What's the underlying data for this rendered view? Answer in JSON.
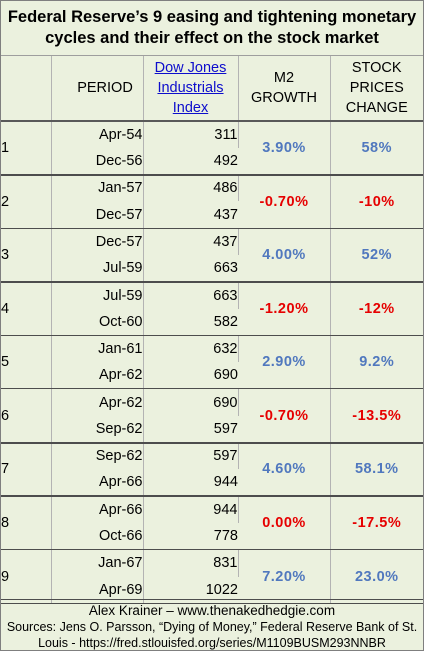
{
  "title": {
    "line1": "Federal Reserve’s 9 easing and tightening monetary",
    "line2": "cycles and their effect on the stock market"
  },
  "headers": {
    "period": "PERIOD",
    "dow": [
      "Dow Jones",
      "Industrials",
      "Index"
    ],
    "m2": [
      "M2",
      "GROWTH"
    ],
    "stock": [
      "STOCK",
      "PRICES",
      "CHANGE"
    ]
  },
  "cycles": [
    {
      "n": "1",
      "start": "Apr-54",
      "end": "Dec-56",
      "dow_start": "311",
      "dow_end": "492",
      "m2": "3.90%",
      "stock": "58%",
      "dir": "pos"
    },
    {
      "n": "2",
      "start": "Jan-57",
      "end": "Dec-57",
      "dow_start": "486",
      "dow_end": "437",
      "m2": "-0.70%",
      "stock": "-10%",
      "dir": "neg"
    },
    {
      "n": "3",
      "start": "Dec-57",
      "end": "Jul-59",
      "dow_start": "437",
      "dow_end": "663",
      "m2": "4.00%",
      "stock": "52%",
      "dir": "pos"
    },
    {
      "n": "4",
      "start": "Jul-59",
      "end": "Oct-60",
      "dow_start": "663",
      "dow_end": "582",
      "m2": "-1.20%",
      "stock": "-12%",
      "dir": "neg"
    },
    {
      "n": "5",
      "start": "Jan-61",
      "end": "Apr-62",
      "dow_start": "632",
      "dow_end": "690",
      "m2": "2.90%",
      "stock": "9.2%",
      "dir": "pos"
    },
    {
      "n": "6",
      "start": "Apr-62",
      "end": "Sep-62",
      "dow_start": "690",
      "dow_end": "597",
      "m2": "-0.70%",
      "stock": "-13.5%",
      "dir": "neg"
    },
    {
      "n": "7",
      "start": "Sep-62",
      "end": "Apr-66",
      "dow_start": "597",
      "dow_end": "944",
      "m2": "4.60%",
      "stock": "58.1%",
      "dir": "pos"
    },
    {
      "n": "8",
      "start": "Apr-66",
      "end": "Oct-66",
      "dow_start": "944",
      "dow_end": "778",
      "m2": "0.00%",
      "stock": "-17.5%",
      "dir": "neg"
    },
    {
      "n": "9",
      "start": "Jan-67",
      "end": "Apr-69",
      "dow_start": "831",
      "dow_end": "1022",
      "m2": "7.20%",
      "stock": "23.0%",
      "dir": "pos"
    }
  ],
  "footer": {
    "credit": "Alex Krainer – www.thenakedhedgie.com",
    "source1": "Sources: Jens O. Parsson, “Dying of Money,” Federal Reserve Bank of St.",
    "source2": "Louis - https://fred.stlouisfed.org/series/M1109BUSM293NNBR"
  },
  "colors": {
    "background": "#ebf1de",
    "positive": "#5078be",
    "negative": "#e60000",
    "link": "#0d0dcc"
  }
}
